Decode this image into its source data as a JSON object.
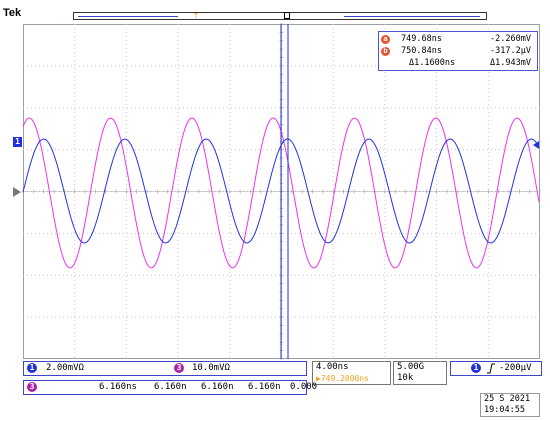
{
  "brand": "Tek",
  "markers": {
    "trigger_pos": "T",
    "cursor_ab": "ab",
    "ch1_level": "1"
  },
  "cursor_readout": {
    "a_label": "a",
    "a_time": "749.68ns",
    "a_value": "-2.260mV",
    "b_label": "b",
    "b_time": "750.84ns",
    "b_value": "-317.2µV",
    "delta_time": "Δ1.1600ns",
    "delta_value": "Δ1.943mV"
  },
  "channels": [
    {
      "badge": "1",
      "scale": "2.00mVΩ",
      "color": "#2233dd"
    },
    {
      "badge": "3",
      "scale": "10.0mVΩ",
      "color": "#aa22aa"
    }
  ],
  "timebase": {
    "scale": "4.00ns",
    "position": "▶749.2000ns"
  },
  "acquisition": {
    "sample_rate": "5.00G",
    "record_length": "10k"
  },
  "trigger": {
    "channel": "1",
    "slope_icon": "rising-edge-icon",
    "level": "-200µV"
  },
  "measurement": {
    "badge": "3",
    "values": [
      "6.160ns",
      "6.160n",
      "6.160n",
      "6.160n",
      "0.000"
    ]
  },
  "datetime": {
    "date": "25 S    2021",
    "time": "19:04:55"
  },
  "colors": {
    "ch1": "#2233dd",
    "ch3": "#ee33ee",
    "trigger_marker": "#f0a020",
    "cursor_marker": "#e8522f",
    "grid": "#c8c8c8"
  }
}
